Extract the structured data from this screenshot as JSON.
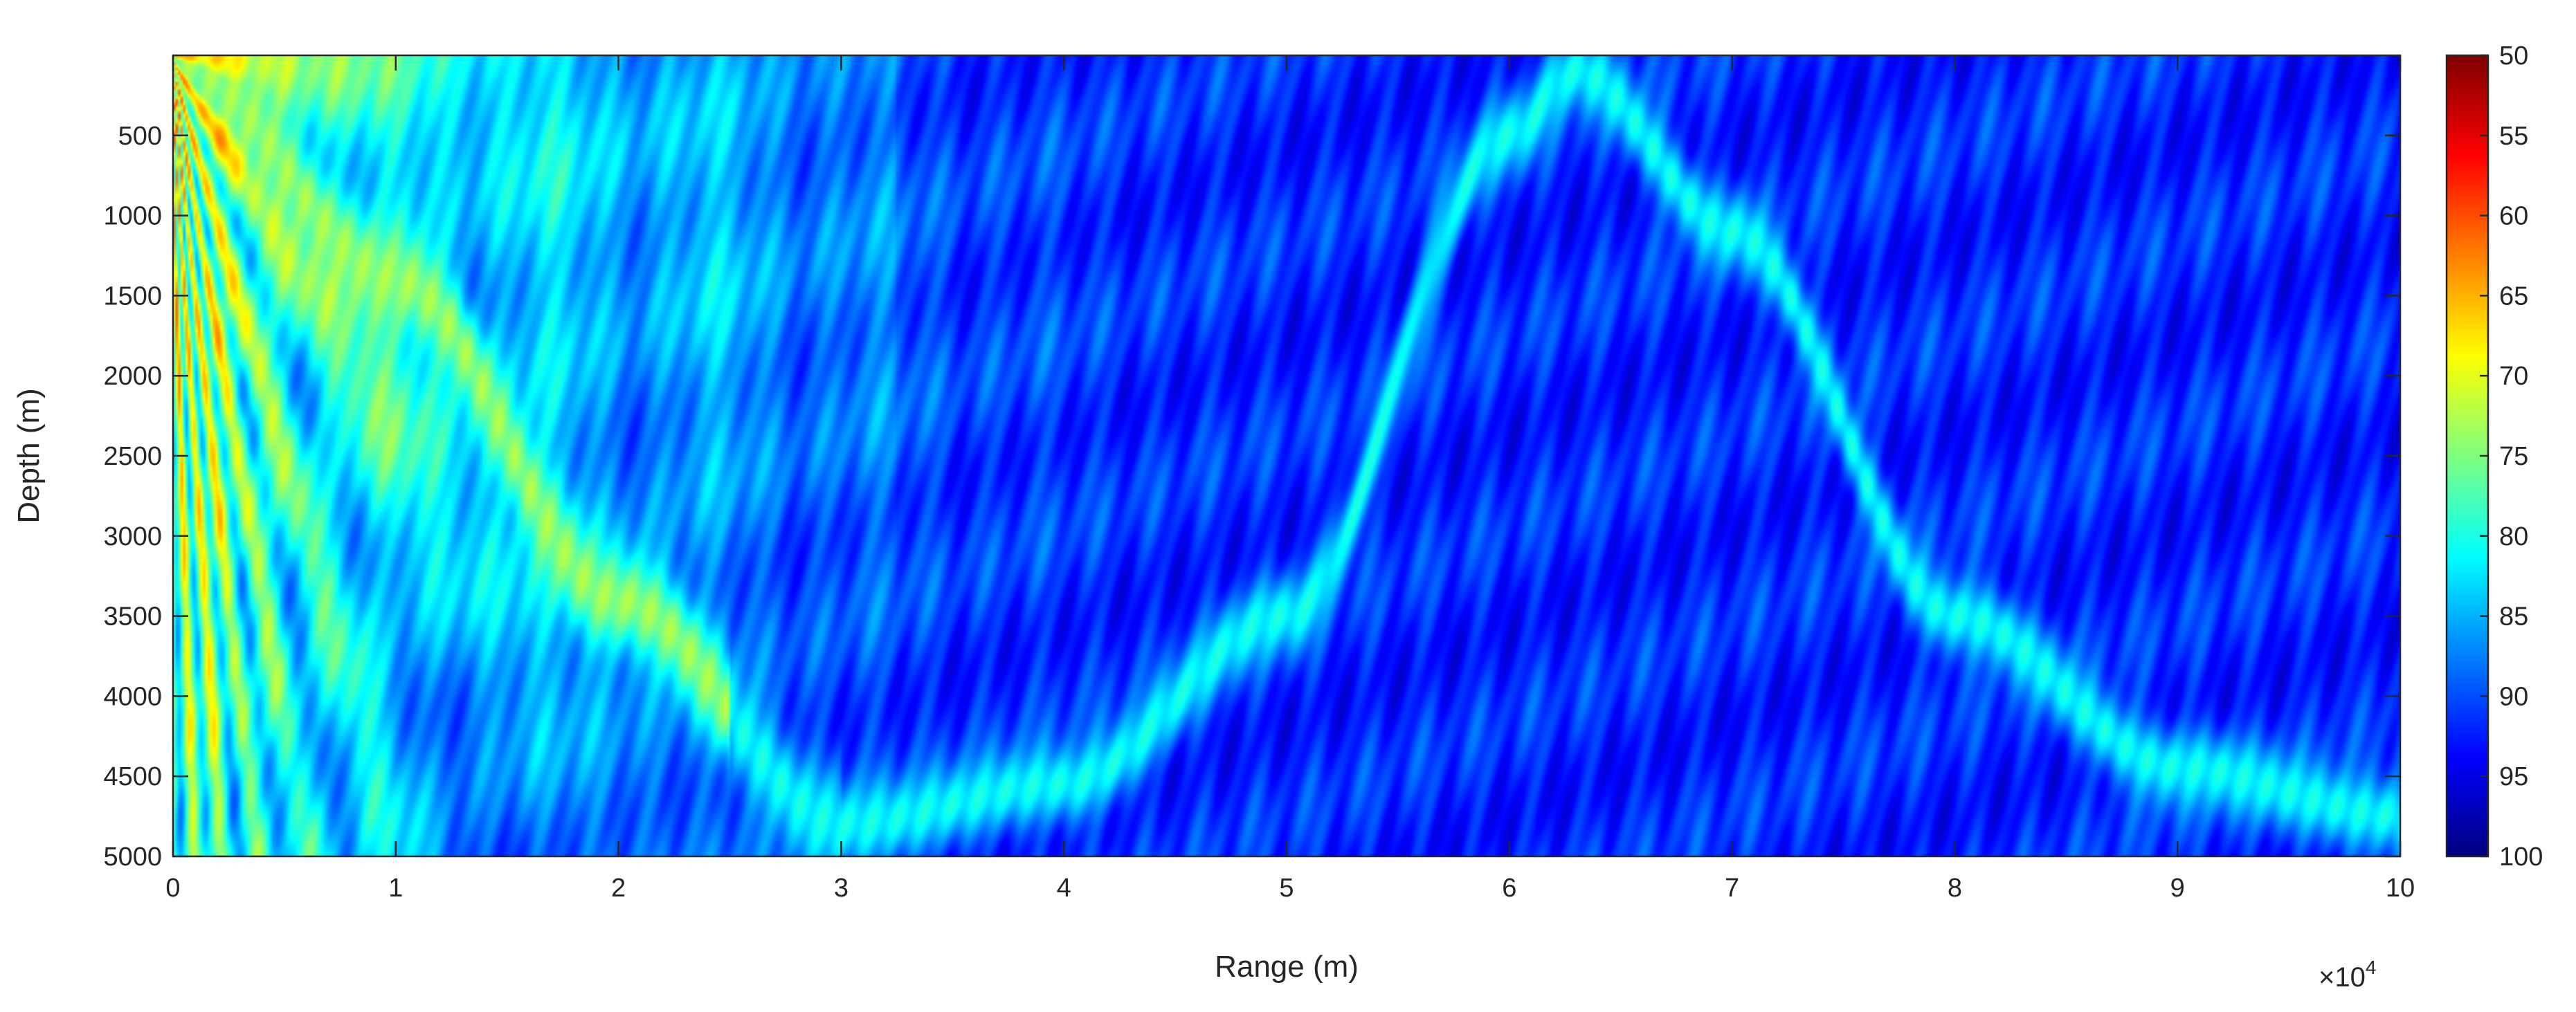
{
  "chart_data": {
    "type": "heatmap",
    "title": "",
    "xlabel": "Range (m)",
    "ylabel": "Depth (m)",
    "x_exponent_label": "×10",
    "x_exponent_power": "4",
    "xlim": [
      0,
      100000
    ],
    "ylim": [
      0,
      5000
    ],
    "y_reversed": true,
    "x_ticks": [
      0,
      10000,
      20000,
      30000,
      40000,
      50000,
      60000,
      70000,
      80000,
      90000,
      100000
    ],
    "x_tick_labels": [
      "0",
      "1",
      "2",
      "3",
      "4",
      "5",
      "6",
      "7",
      "8",
      "9",
      "10"
    ],
    "y_ticks": [
      500,
      1000,
      1500,
      2000,
      2500,
      3000,
      3500,
      4000,
      4500,
      5000
    ],
    "y_tick_labels": [
      "500",
      "1000",
      "1500",
      "2000",
      "2500",
      "3000",
      "3500",
      "4000",
      "4500",
      "5000"
    ],
    "colorbar": {
      "min": 50,
      "max": 100,
      "reversed": true,
      "colormap": "jet",
      "ticks": [
        50,
        55,
        60,
        65,
        70,
        75,
        80,
        85,
        90,
        95,
        100
      ],
      "tick_labels": [
        "50",
        "55",
        "60",
        "65",
        "70",
        "75",
        "80",
        "85",
        "90",
        "95",
        "100"
      ]
    },
    "features": [
      {
        "kind": "source-fan",
        "x_range": [
          0,
          25000
        ],
        "value_range": [
          55,
          85
        ]
      },
      {
        "kind": "convergence-beam",
        "x": [
          0,
          10000,
          20000,
          30000,
          40000,
          50000,
          60000,
          63000,
          70000,
          80000,
          90000,
          100000
        ],
        "y": [
          0,
          1400,
          3400,
          4800,
          4550,
          3500,
          500,
          100,
          1100,
          3500,
          4450,
          4750
        ],
        "value": 81
      },
      {
        "kind": "background",
        "value": 92
      }
    ]
  },
  "colors": {
    "frame": "#262626",
    "background": "#ffffff"
  }
}
